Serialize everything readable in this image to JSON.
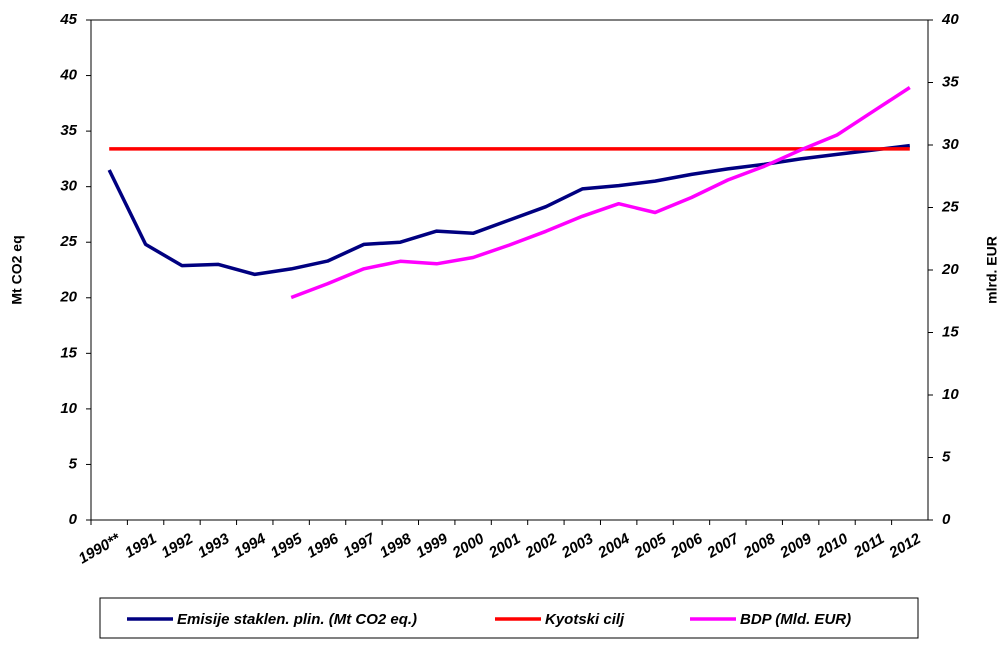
{
  "chart_data": {
    "type": "line",
    "categories": [
      "1990**",
      "1991",
      "1992",
      "1993",
      "1994",
      "1995",
      "1996",
      "1997",
      "1998",
      "1999",
      "2000",
      "2001",
      "2002",
      "2003",
      "2004",
      "2005",
      "2006",
      "2007",
      "2008",
      "2009",
      "2010",
      "2011",
      "2012"
    ],
    "series": [
      {
        "name": "Emisije staklen. plin. (Mt CO2 eq.)",
        "color": "#000080",
        "values": [
          31.5,
          24.8,
          22.9,
          23.0,
          22.1,
          22.6,
          23.3,
          24.8,
          25.0,
          26.0,
          25.8,
          27.0,
          28.2,
          29.8,
          30.1,
          30.5,
          31.1,
          31.6,
          32.0,
          32.5,
          32.9,
          33.3,
          33.7
        ]
      },
      {
        "name": "Kyotski cilj",
        "color": "#ff0000",
        "values": [
          33.4,
          33.4,
          33.4,
          33.4,
          33.4,
          33.4,
          33.4,
          33.4,
          33.4,
          33.4,
          33.4,
          33.4,
          33.4,
          33.4,
          33.4,
          33.4,
          33.4,
          33.4,
          33.4,
          33.4,
          33.4,
          33.4,
          33.4
        ]
      },
      {
        "name": "BDP (Mld. EUR)",
        "color": "#ff00ff",
        "axis": "y2",
        "values": [
          null,
          null,
          null,
          null,
          null,
          17.8,
          18.9,
          20.1,
          20.7,
          20.5,
          21.0,
          22.0,
          23.1,
          24.3,
          25.3,
          24.6,
          25.8,
          27.2,
          28.3,
          29.6,
          30.8,
          32.7,
          34.6
        ]
      }
    ],
    "ylabel": "Mt CO2 eq",
    "y2label": "mlrd. EUR",
    "ylim": [
      0,
      45
    ],
    "yticks": [
      0,
      5,
      10,
      15,
      20,
      25,
      30,
      35,
      40,
      45
    ],
    "y2lim": [
      0,
      40
    ],
    "y2ticks": [
      0,
      5,
      10,
      15,
      20,
      25,
      30,
      35,
      40
    ],
    "grid": false,
    "legend": "bottom"
  }
}
